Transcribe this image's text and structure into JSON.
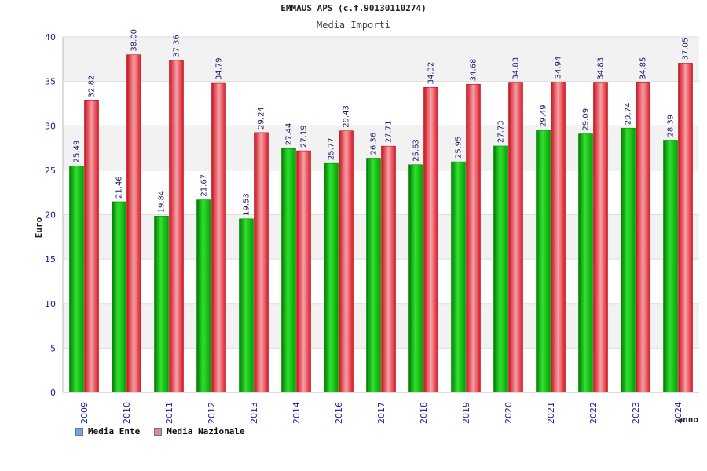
{
  "chart_data": {
    "type": "bar",
    "title": "EMMAUS APS (c.f.90130110274)",
    "subtitle": "Media Importi",
    "xlabel": "anno",
    "ylabel": "Euro",
    "ylim": [
      0,
      40
    ],
    "yticks": [
      0,
      5,
      10,
      15,
      20,
      25,
      30,
      35,
      40
    ],
    "grid": true,
    "legend_position": "bottom-left",
    "categories": [
      "2009",
      "2010",
      "2011",
      "2012",
      "2013",
      "2014",
      "2016",
      "2017",
      "2018",
      "2019",
      "2020",
      "2021",
      "2022",
      "2023",
      "2024"
    ],
    "series": [
      {
        "name": "Media Ente",
        "color": "#00b000",
        "legend_color": "#6aa6f0",
        "values": [
          25.49,
          21.46,
          19.84,
          21.67,
          19.53,
          27.44,
          25.77,
          26.36,
          25.63,
          25.95,
          27.73,
          29.49,
          29.09,
          29.74,
          28.39
        ],
        "labels": [
          "25.49",
          "21.46",
          "19.84",
          "21.67",
          "19.53",
          "27.44",
          "25.77",
          "26.36",
          "25.63",
          "25.95",
          "27.73",
          "29.49",
          "29.09",
          "29.74",
          "28.39"
        ]
      },
      {
        "name": "Media Nazionale",
        "color": "#e8202a",
        "legend_color": "#e07fb0",
        "values": [
          32.82,
          38.0,
          37.36,
          34.79,
          29.24,
          27.19,
          29.43,
          27.71,
          34.32,
          34.68,
          34.83,
          34.94,
          34.83,
          34.85,
          37.05
        ],
        "labels": [
          "32.82",
          "38.00",
          "37.36",
          "34.79",
          "29.24",
          "27.19",
          "29.43",
          "27.71",
          "34.32",
          "34.68",
          "34.83",
          "34.94",
          "34.83",
          "34.85",
          "37.05"
        ]
      }
    ]
  }
}
